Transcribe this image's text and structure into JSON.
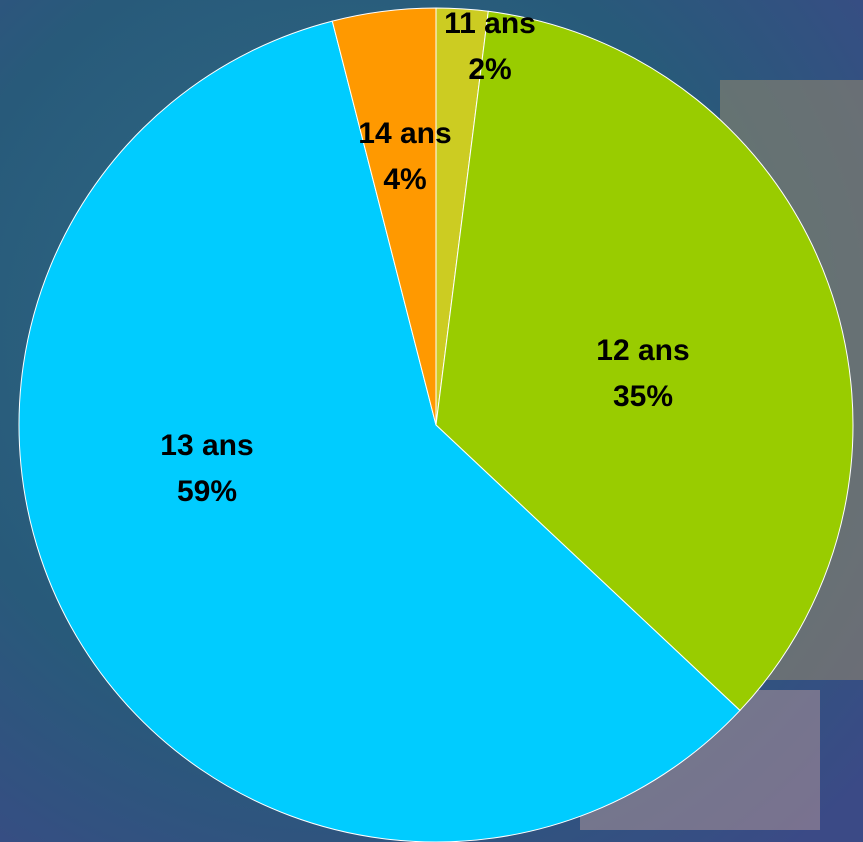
{
  "chart_data": {
    "type": "pie",
    "categories": [
      "11 ans",
      "12 ans",
      "13 ans",
      "14 ans"
    ],
    "values": [
      2,
      35,
      59,
      4
    ],
    "value_labels": [
      "2%",
      "35%",
      "59%",
      "4%"
    ],
    "colors": [
      "#cccc22",
      "#99cc00",
      "#00ccff",
      "#ff9900"
    ]
  }
}
